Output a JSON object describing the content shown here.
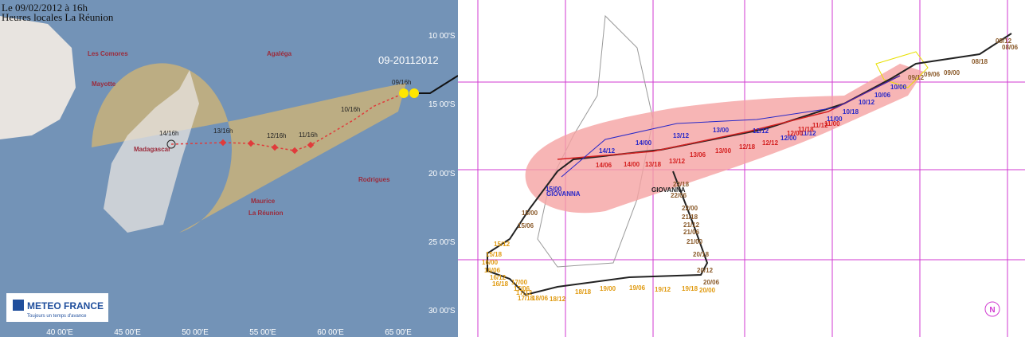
{
  "left": {
    "header": {
      "date": "Le 09/02/2012 à 16h",
      "local": "Heures locales La Réunion"
    },
    "storm_id": "09-20112012",
    "places": [
      "Les Comores",
      "Agaléga",
      "Mayotte",
      "Madagascar",
      "Maurice",
      "La Réunion",
      "Rodrigues"
    ],
    "times": [
      "09/16h",
      "10/16h",
      "11/16h",
      "12/16h",
      "13/16h",
      "14/16h"
    ],
    "lat": [
      "10 00'S",
      "15 00'S",
      "20 00'S",
      "25 00'S",
      "30 00'S"
    ],
    "lon": [
      "40 00'E",
      "45 00'E",
      "50 00'E",
      "55 00'E",
      "60 00'E",
      "65 00'E"
    ],
    "logo": {
      "name": "METEO FRANCE",
      "tagline": "Toujours un temps d'avance"
    }
  },
  "right": {
    "storm_names": [
      "GIOVANNA",
      "GIOVANNA"
    ],
    "blue_track": [
      "15/00",
      "14/12",
      "14/00",
      "13/12",
      "13/00",
      "12/12",
      "12/00",
      "11/12",
      "11/00",
      "10/18",
      "10/12",
      "10/06",
      "10/00"
    ],
    "red_track": [
      "14/06",
      "14/00",
      "13/18",
      "13/12",
      "13/06",
      "13/00",
      "12/18",
      "12/12",
      "12/00",
      "11/18",
      "11/12",
      "11/00"
    ],
    "black_track": [
      "15/00",
      "15/06",
      "08/06",
      "08/12",
      "08/18",
      "09/00",
      "09/06",
      "09/12",
      "22/18",
      "22/06",
      "22/00",
      "21/18",
      "21/12",
      "21/06",
      "21/00",
      "20/18",
      "20/12",
      "20/06"
    ],
    "orange_track": [
      "15/12",
      "15/18",
      "16/00",
      "16/06",
      "16/12",
      "16/18",
      "17/00",
      "17/06",
      "17/12",
      "17/18",
      "18/06",
      "18/12",
      "18/18",
      "19/00",
      "19/06",
      "19/12",
      "19/18",
      "20/00"
    ],
    "north": "N"
  }
}
